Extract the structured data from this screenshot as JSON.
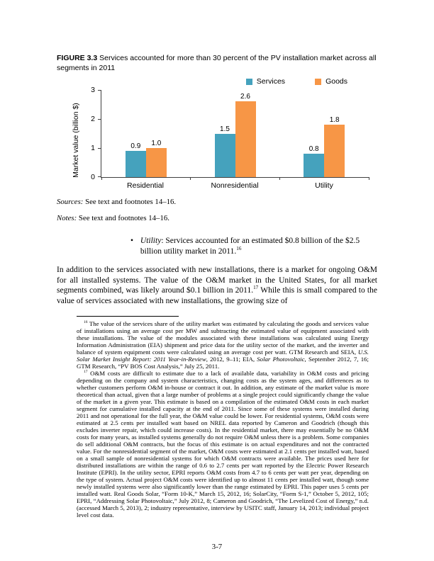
{
  "page": {
    "number": "3-7"
  },
  "figure": {
    "label": "FIGURE 3.3",
    "caption": "Services accounted for more than 30 percent of the PV installation market across all segments in 2011",
    "sources_label": "Sources:",
    "sources_text": " See text and footnotes 14–16.",
    "notes_label": "Notes:",
    "notes_text": " See text and footnotes 14–16."
  },
  "chart_data": {
    "type": "bar",
    "categories": [
      "Residential",
      "Nonresidential",
      "Utility"
    ],
    "series": [
      {
        "name": "Services",
        "color": "#45A2BD",
        "values": [
          0.9,
          1.5,
          0.8
        ]
      },
      {
        "name": "Goods",
        "color": "#F79646",
        "values": [
          1.0,
          2.6,
          1.8
        ]
      }
    ],
    "ylabel": "Market value (billion $)",
    "ylim": [
      0,
      3
    ],
    "yticks": [
      0,
      1,
      2,
      3
    ],
    "legend_position": "top-right",
    "grid": false,
    "value_labels": true
  },
  "bullet": {
    "marker": "•",
    "term": "Utility",
    "text": ": Services accounted for an estimated $0.8 billion of the $2.5 billion utility market in 2011.",
    "ref": "16"
  },
  "paragraph": {
    "part1": "In addition to the services associated with new installations, there is a market for ongoing O&M for all installed systems. The value of the O&M market in the United States, for all market segments combined, was likely around $0.1 billion in 2011.",
    "ref": "17",
    "part2": " While this is small compared to the value of services associated with new installations, the growing size of"
  },
  "footnotes": {
    "fn16": {
      "marker": "16",
      "t1": " The value of the services share of the utility market was estimated by calculating the goods and services value of installations using an average cost per MW and subtracting the estimated value of equipment associated with these installations. The value of the modules associated with these installations was calculated using Energy Information Administration (EIA) shipment and price data for the utility sector of the market, and the inverter and balance of system equipment costs were calculated using an average cost per watt. GTM Research and SEIA, ",
      "i1": "U.S. Solar Market Insight Report: 2011 Year-in-Review",
      "t2": ", 2012, 9–11; EIA, ",
      "i2": "Solar Photovoltaic",
      "t3": ", September 2012, 7, 16; GTM Research, “PV BOS Cost Analysis,” July 25, 2011."
    },
    "fn17": {
      "marker": "17",
      "text": " O&M costs are difficult to estimate due to a lack of available data, variability in O&M costs and pricing depending on the company and system characteristics, changing costs as the system ages, and differences as to whether customers perform O&M in-house or contract it out. In addition, any estimate of the market value is more theoretical than actual, given that a large number of problems at a single project could significantly change the value of the market in a given year. This estimate is based on a compilation of the estimated O&M costs in each market segment for cumulative installed capacity at the end of 2011. Since some of these systems were installed during 2011 and not operational for the full year, the O&M value could be lower. For residential systems, O&M costs were estimated at 2.5 cents per installed watt based on NREL data reported by Cameron and Goodrich (though this excludes inverter repair, which could increase costs). In the residential market, there may essentially be no O&M costs for many years, as installed systems generally do not require O&M unless there is a problem. Some companies do sell additional O&M contracts, but the focus of this estimate is on actual expenditures and not the contracted value. For the nonresidential segment of the market, O&M costs were estimated at 2.1 cents per installed watt, based on a small sample of nonresidential systems for which O&M contracts were available. The prices used here for distributed installations are within the range of 0.6 to 2.7 cents per watt reported by the Electric Power Research Institute (EPRI). In the utility sector, EPRI reports O&M costs from 4.7 to 6 cents per watt per year, depending on the type of system. Actual project O&M costs were identified up to almost 11 cents per installed watt, though some newly installed systems were also significantly lower than the range estimated by EPRI. This paper uses 5 cents per installed watt. Real Goods Solar, “Form 10-K,” March 15, 2012, 16; SolarCity, “Form S-1,” October 5, 2012, 105; EPRI, “Addressing Solar Photovoltaic,” July 2012, 8; Cameron and Goodrich, “The Levelized Cost of Energy,” n.d. (accessed March 5, 2013), 2; industry representative, interview by USITC staff, January 14, 2013; individual project level cost data."
    }
  }
}
